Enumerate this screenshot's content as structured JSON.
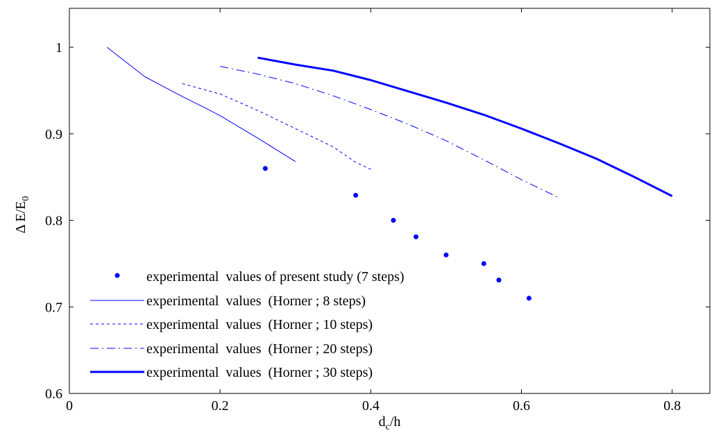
{
  "chart_data": {
    "type": "line",
    "title": "",
    "xlabel": "d",
    "xlabel_sub": "c",
    "xlabel_suffix": "/h",
    "ylabel": "Δ E/E",
    "ylabel_sub": "0",
    "xlim": [
      0,
      0.85
    ],
    "ylim": [
      0.6,
      1.045
    ],
    "xticks": [
      0,
      0.2,
      0.4,
      0.6,
      0.8
    ],
    "xtick_labels": [
      "0",
      "0.2",
      "0.4",
      "0.6",
      "0.8"
    ],
    "yticks": [
      0.6,
      0.7,
      0.8,
      0.9,
      1.0
    ],
    "ytick_labels": [
      "0.6",
      "0.7",
      "0.8",
      "0.9",
      "1"
    ],
    "grid": false,
    "legend_position": "bottom-left",
    "color": "#0000ff",
    "series": [
      {
        "name": "experimental  values of present study (7 steps)",
        "style": "dots",
        "x": [
          0.26,
          0.38,
          0.43,
          0.46,
          0.5,
          0.55,
          0.57,
          0.61
        ],
        "y": [
          0.86,
          0.829,
          0.8,
          0.781,
          0.76,
          0.75,
          0.731,
          0.71
        ]
      },
      {
        "name": "experimental  values  (Horner ; 8 steps)",
        "style": "solid-thin",
        "x": [
          0.05,
          0.1,
          0.15,
          0.18,
          0.2,
          0.25,
          0.3
        ],
        "y": [
          1.0,
          0.966,
          0.943,
          0.93,
          0.921,
          0.895,
          0.868
        ]
      },
      {
        "name": "experimental  values  (Horner ; 10 steps)",
        "style": "dashed-short",
        "x": [
          0.15,
          0.2,
          0.25,
          0.3,
          0.35,
          0.38,
          0.4
        ],
        "y": [
          0.958,
          0.946,
          0.927,
          0.906,
          0.885,
          0.867,
          0.859
        ]
      },
      {
        "name": "experimental  values  (Horner ; 20 steps)",
        "style": "dashed-long",
        "x": [
          0.2,
          0.25,
          0.3,
          0.35,
          0.4,
          0.45,
          0.5,
          0.55,
          0.6,
          0.65
        ],
        "y": [
          0.978,
          0.969,
          0.958,
          0.944,
          0.928,
          0.911,
          0.892,
          0.87,
          0.847,
          0.826
        ]
      },
      {
        "name": "experimental  values  (Horner ; 30 steps)",
        "style": "solid-thick",
        "x": [
          0.25,
          0.3,
          0.35,
          0.4,
          0.45,
          0.5,
          0.55,
          0.6,
          0.65,
          0.7,
          0.75,
          0.8
        ],
        "y": [
          0.988,
          0.98,
          0.973,
          0.962,
          0.949,
          0.936,
          0.922,
          0.906,
          0.889,
          0.871,
          0.85,
          0.828
        ]
      }
    ]
  }
}
